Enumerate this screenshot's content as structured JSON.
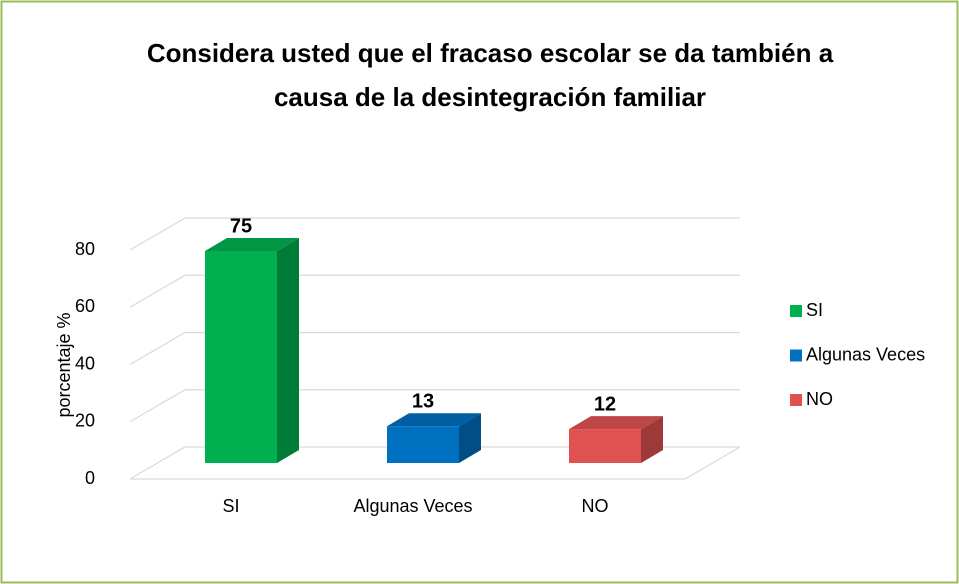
{
  "chart_data": {
    "type": "bar3d",
    "title": "Considera usted que el fracaso escolar se da también a causa de la desintegración familiar",
    "y_label": "porcentaje %",
    "categories": [
      "SI",
      "Algunas Veces",
      "NO"
    ],
    "values": [
      75,
      13,
      12
    ],
    "colors": [
      "#00b050",
      "#0070c0",
      "#e05252"
    ],
    "ylim": [
      0,
      80
    ],
    "yticks": [
      0,
      20,
      40,
      60,
      80
    ],
    "grid": true,
    "legend": "right"
  }
}
